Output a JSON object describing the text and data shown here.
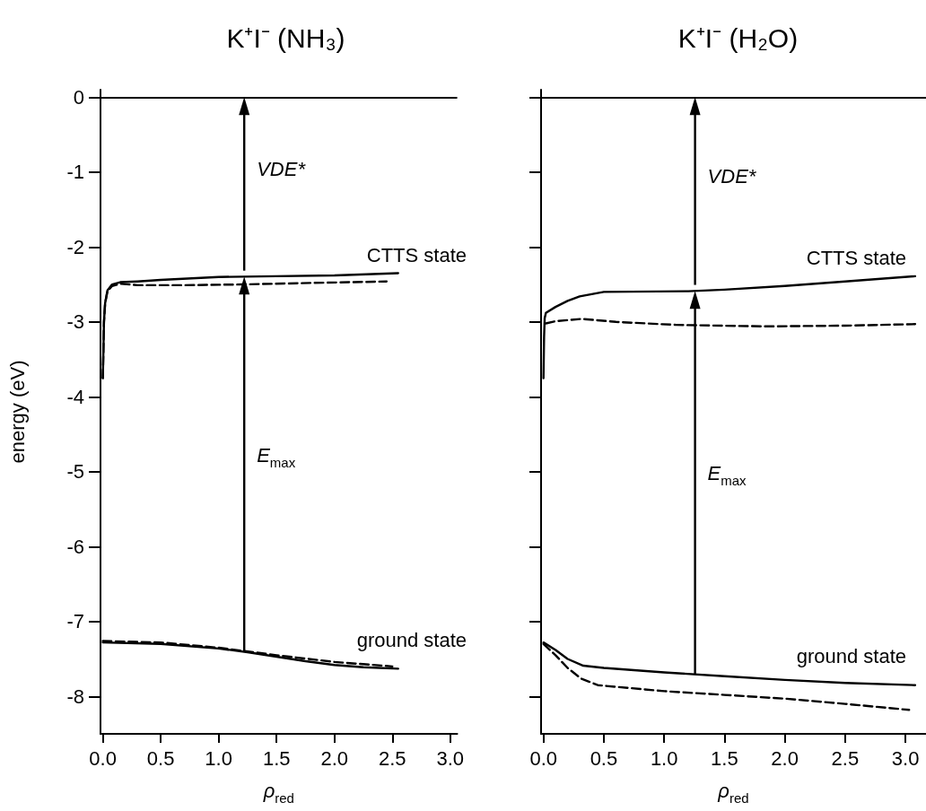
{
  "chart_data": [
    {
      "type": "line",
      "title": "K⁺I⁻ (NH₃)",
      "xlabel": "ρ$_{red}$",
      "ylabel": "energy (eV)",
      "xlim": [
        -0.02,
        3.06
      ],
      "ylim": [
        -8.5,
        0.1
      ],
      "xticks": [
        {
          "value": 0,
          "label": "0.0"
        },
        {
          "value": 0.5,
          "label": "0.5"
        },
        {
          "value": 1,
          "label": "1.0"
        },
        {
          "value": 1.5,
          "label": "1.5"
        },
        {
          "value": 2,
          "label": "2.0"
        },
        {
          "value": 2.5,
          "label": "2.5"
        },
        {
          "value": 3,
          "label": "3.0"
        }
      ],
      "yticks": [
        0,
        -1,
        -2,
        -3,
        -4,
        -5,
        -6,
        -7,
        -8
      ],
      "series": [
        {
          "color": "#000000",
          "line_style": "solid",
          "x": [
            0,
            0.005,
            0.01,
            0.02,
            0.04,
            0.08,
            0.15,
            0.3,
            0.5,
            1.0,
            1.5,
            2.0,
            2.55
          ],
          "values": [
            -3.75,
            -3.4,
            -3.0,
            -2.75,
            -2.58,
            -2.5,
            -2.47,
            -2.46,
            -2.44,
            -2.4,
            -2.39,
            -2.38,
            -2.35
          ]
        },
        {
          "color": "#000000",
          "line_style": "dashed",
          "x": [
            0,
            0.005,
            0.01,
            0.02,
            0.04,
            0.08,
            0.15,
            0.3,
            0.7,
            1.2,
            1.8,
            2.45
          ],
          "values": [
            -3.75,
            -3.4,
            -3.0,
            -2.75,
            -2.59,
            -2.52,
            -2.49,
            -2.51,
            -2.51,
            -2.5,
            -2.48,
            -2.46
          ]
        },
        {
          "color": "#000000",
          "line_style": "solid",
          "x": [
            0,
            0.5,
            1.0,
            1.25,
            1.5,
            1.75,
            2.0,
            2.25,
            2.55
          ],
          "values": [
            -7.28,
            -7.3,
            -7.36,
            -7.41,
            -7.47,
            -7.53,
            -7.58,
            -7.61,
            -7.63
          ]
        },
        {
          "color": "#000000",
          "line_style": "dashed",
          "x": [
            0,
            0.5,
            1.0,
            1.5,
            2.0,
            2.5
          ],
          "values": [
            -7.26,
            -7.28,
            -7.35,
            -7.45,
            -7.54,
            -7.6
          ]
        }
      ],
      "ref_lines": [
        {
          "axis": "y",
          "value": 0
        }
      ],
      "annotations": [
        "VDE*",
        "E$_{max}$",
        "CTTS state",
        "ground state"
      ]
    },
    {
      "type": "line",
      "title": "K⁺I⁻ (H₂O)",
      "xlabel": "ρ$_{red}$",
      "xlim": [
        -0.02,
        3.17
      ],
      "ylim": [
        -8.5,
        0.1
      ],
      "xticks": [
        {
          "value": 0,
          "label": "0.0"
        },
        {
          "value": 0.5,
          "label": "0.5"
        },
        {
          "value": 1,
          "label": "1.0"
        },
        {
          "value": 1.5,
          "label": "1.5"
        },
        {
          "value": 2,
          "label": "2.0"
        },
        {
          "value": 2.5,
          "label": "2.5"
        },
        {
          "value": 3,
          "label": "3.0"
        }
      ],
      "yticks": [
        0,
        -1,
        -2,
        -3,
        -4,
        -5,
        -6,
        -7,
        -8
      ],
      "tick_labels": "x",
      "series": [
        {
          "color": "#000000",
          "line_style": "solid",
          "x": [
            0,
            0.005,
            0.01,
            0.02,
            0.1,
            0.2,
            0.3,
            0.5,
            1.2,
            1.5,
            2.0,
            2.5,
            3.08
          ],
          "values": [
            -3.75,
            -3.2,
            -2.95,
            -2.88,
            -2.8,
            -2.72,
            -2.66,
            -2.6,
            -2.59,
            -2.57,
            -2.52,
            -2.46,
            -2.39
          ]
        },
        {
          "color": "#000000",
          "line_style": "dashed",
          "x": [
            0.02,
            0.1,
            0.32,
            0.6,
            1.1,
            1.84,
            2.5,
            3.08
          ],
          "values": [
            -3.02,
            -2.99,
            -2.96,
            -3.0,
            -3.04,
            -3.06,
            -3.05,
            -3.03
          ]
        },
        {
          "color": "#000000",
          "line_style": "solid",
          "x": [
            0,
            0.1,
            0.2,
            0.33,
            0.5,
            1.0,
            1.5,
            2.0,
            2.5,
            3.08
          ],
          "values": [
            -7.28,
            -7.38,
            -7.5,
            -7.59,
            -7.62,
            -7.68,
            -7.73,
            -7.78,
            -7.82,
            -7.85
          ]
        },
        {
          "color": "#000000",
          "line_style": "dashed",
          "x": [
            0,
            0.1,
            0.2,
            0.31,
            0.45,
            1.0,
            1.5,
            2.0,
            2.5,
            3.03
          ],
          "values": [
            -7.3,
            -7.45,
            -7.62,
            -7.76,
            -7.85,
            -7.93,
            -7.98,
            -8.03,
            -8.1,
            -8.18
          ]
        }
      ],
      "ref_lines": [
        {
          "axis": "y",
          "value": 0
        }
      ],
      "annotations": [
        "VDE*",
        "E$_{max}$",
        "CTTS state",
        "ground state"
      ]
    }
  ]
}
